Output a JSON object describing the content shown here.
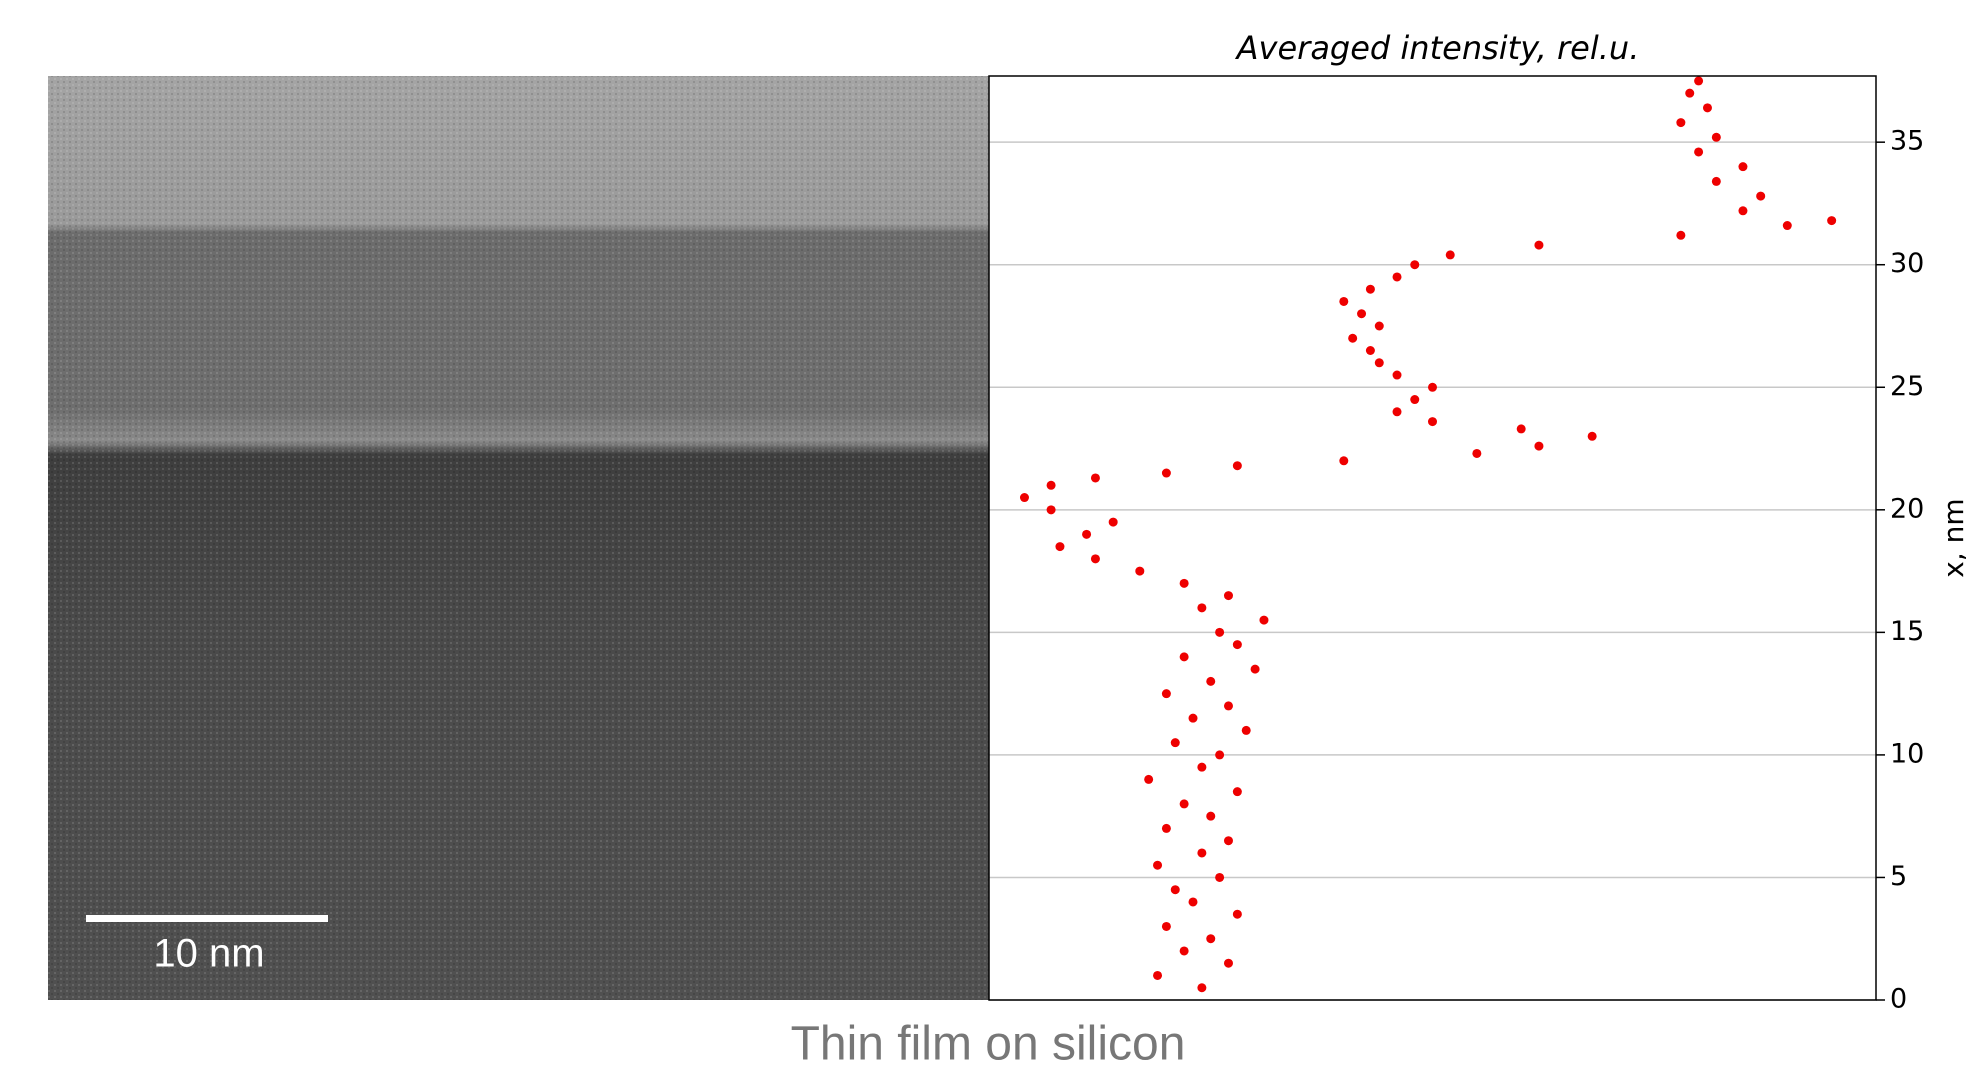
{
  "chart_data": {
    "type": "scatter",
    "title": "Averaged intensity, rel.u.",
    "y_label": "x, nm",
    "caption": "Thin film on silicon",
    "scale_bar_label": "10 nm",
    "color": "#ee0000",
    "x": [
      0.5,
      1.0,
      1.5,
      2.0,
      2.5,
      3.0,
      3.5,
      4.0,
      4.5,
      5.0,
      5.5,
      6.0,
      6.5,
      7.0,
      7.5,
      8.0,
      8.5,
      9.0,
      9.5,
      10.0,
      10.5,
      11.0,
      11.5,
      12.0,
      12.5,
      13.0,
      13.5,
      14.0,
      14.5,
      15.0,
      15.5,
      16.0,
      16.5,
      17.0,
      17.5,
      18.0,
      18.5,
      19.0,
      19.5,
      20.0,
      20.5,
      21.0,
      21.3,
      21.5,
      21.8,
      22.0,
      22.3,
      22.6,
      23.0,
      23.3,
      23.6,
      24.0,
      24.5,
      25.0,
      25.5,
      26.0,
      26.5,
      27.0,
      27.5,
      28.0,
      28.5,
      29.0,
      29.5,
      30.0,
      30.4,
      30.8,
      31.2,
      31.6,
      31.8,
      32.2,
      32.8,
      33.4,
      34.0,
      34.6,
      35.2,
      35.8,
      36.4,
      37.0,
      37.5
    ],
    "values": [
      0.24,
      0.19,
      0.27,
      0.22,
      0.25,
      0.2,
      0.28,
      0.23,
      0.21,
      0.26,
      0.19,
      0.24,
      0.27,
      0.2,
      0.25,
      0.22,
      0.28,
      0.18,
      0.24,
      0.26,
      0.21,
      0.29,
      0.23,
      0.27,
      0.2,
      0.25,
      0.3,
      0.22,
      0.28,
      0.26,
      0.31,
      0.24,
      0.27,
      0.22,
      0.17,
      0.12,
      0.08,
      0.11,
      0.14,
      0.07,
      0.04,
      0.07,
      0.12,
      0.2,
      0.28,
      0.4,
      0.55,
      0.62,
      0.68,
      0.6,
      0.5,
      0.46,
      0.48,
      0.5,
      0.46,
      0.44,
      0.43,
      0.41,
      0.44,
      0.42,
      0.4,
      0.43,
      0.46,
      0.48,
      0.52,
      0.62,
      0.78,
      0.9,
      0.95,
      0.85,
      0.87,
      0.82,
      0.85,
      0.8,
      0.82,
      0.78,
      0.81,
      0.79,
      0.8
    ],
    "xlim": [
      0,
      1
    ],
    "ylim": [
      0,
      37.7
    ],
    "yticks": [
      0,
      5,
      10,
      15,
      20,
      25,
      30,
      35
    ],
    "grid": true
  }
}
